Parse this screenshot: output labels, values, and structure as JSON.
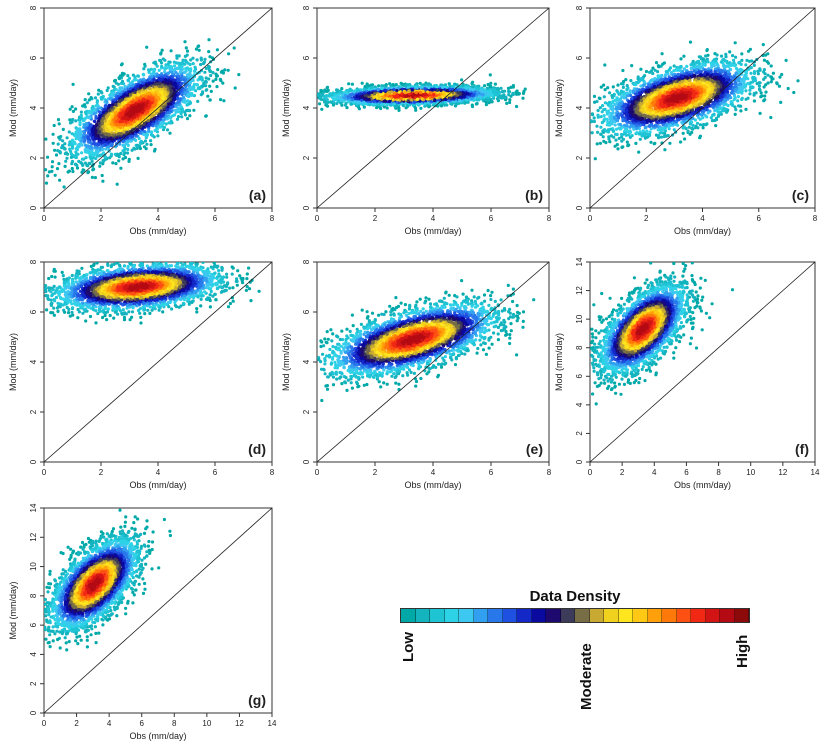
{
  "chart_data": [
    {
      "type": "scatter",
      "panel_label": "(a)",
      "xlabel": "Obs (mm/day)",
      "ylabel": "Mod (mm/day)",
      "xlim": [
        0,
        8
      ],
      "ylim": [
        0,
        8
      ],
      "xticks": [
        0,
        2,
        4,
        6,
        8
      ],
      "yticks": [
        0,
        2,
        4,
        6,
        8
      ],
      "reference_line": "1:1",
      "density_center": [
        3.2,
        3.9
      ],
      "spread": [
        1.1,
        0.9
      ],
      "correlation": 0.7
    },
    {
      "type": "scatter",
      "panel_label": "(b)",
      "xlabel": "Obs (mm/day)",
      "ylabel": "Mod (mm/day)",
      "xlim": [
        0,
        8
      ],
      "ylim": [
        0,
        8
      ],
      "xticks": [
        0,
        2,
        4,
        6,
        8
      ],
      "yticks": [
        0,
        2,
        4,
        6,
        8
      ],
      "reference_line": "1:1",
      "density_center": [
        3.3,
        4.5
      ],
      "spread": [
        1.4,
        0.18
      ],
      "correlation": 0.2
    },
    {
      "type": "scatter",
      "panel_label": "(c)",
      "xlabel": "Obs (mm/day)",
      "ylabel": "Mod (mm/day)",
      "xlim": [
        0,
        8
      ],
      "ylim": [
        0,
        8
      ],
      "xticks": [
        0,
        2,
        4,
        6,
        8
      ],
      "yticks": [
        0,
        2,
        4,
        6,
        8
      ],
      "reference_line": "1:1",
      "density_center": [
        3.1,
        4.4
      ],
      "spread": [
        1.3,
        0.7
      ],
      "correlation": 0.55
    },
    {
      "type": "scatter",
      "panel_label": "(d)",
      "xlabel": "Obs (mm/day)",
      "ylabel": "Mod (mm/day)",
      "xlim": [
        0,
        8
      ],
      "ylim": [
        0,
        8
      ],
      "xticks": [
        0,
        2,
        4,
        6,
        8
      ],
      "yticks": [
        0,
        2,
        4,
        6,
        8
      ],
      "reference_line": "1:1",
      "density_center": [
        3.3,
        7.0
      ],
      "spread": [
        1.4,
        0.45
      ],
      "correlation": 0.3
    },
    {
      "type": "scatter",
      "panel_label": "(e)",
      "xlabel": "Obs (mm/day)",
      "ylabel": "Mod (mm/day)",
      "xlim": [
        0,
        8
      ],
      "ylim": [
        0,
        8
      ],
      "xticks": [
        0,
        2,
        4,
        6,
        8
      ],
      "yticks": [
        0,
        2,
        4,
        6,
        8
      ],
      "reference_line": "1:1",
      "density_center": [
        3.3,
        4.9
      ],
      "spread": [
        1.4,
        0.7
      ],
      "correlation": 0.6
    },
    {
      "type": "scatter",
      "panel_label": "(f)",
      "xlabel": "Obs (mm/day)",
      "ylabel": "Mod (mm/day)",
      "xlim": [
        0,
        14
      ],
      "ylim": [
        0,
        14
      ],
      "xticks": [
        0,
        2,
        4,
        6,
        8,
        10,
        12,
        14
      ],
      "yticks": [
        0,
        2,
        4,
        6,
        8,
        10,
        12,
        14
      ],
      "reference_line": "1:1",
      "density_center": [
        3.3,
        9.3
      ],
      "spread": [
        1.3,
        1.5
      ],
      "correlation": 0.6
    },
    {
      "type": "scatter",
      "panel_label": "(g)",
      "xlabel": "Obs (mm/day)",
      "ylabel": "Mod (mm/day)",
      "xlim": [
        0,
        14
      ],
      "ylim": [
        0,
        14
      ],
      "xticks": [
        0,
        2,
        4,
        6,
        8,
        10,
        12,
        14
      ],
      "yticks": [
        0,
        2,
        4,
        6,
        8,
        10,
        12,
        14
      ],
      "reference_line": "1:1",
      "density_center": [
        3.1,
        8.8
      ],
      "spread": [
        1.3,
        1.5
      ],
      "correlation": 0.6
    }
  ],
  "legend": {
    "title": "Data Density",
    "low_label": "Low",
    "moderate_label": "Moderate",
    "high_label": "High",
    "colors": [
      "#00a8a8",
      "#14b4bf",
      "#1ec3d4",
      "#2dd2e6",
      "#3cc8f0",
      "#32a0f0",
      "#2878eb",
      "#1e50e1",
      "#1428c8",
      "#0a0aa0",
      "#1e0a6e",
      "#3c3c5a",
      "#786e46",
      "#c8aa32",
      "#f0d21e",
      "#ffe61e",
      "#ffc814",
      "#ffa00a",
      "#ff780a",
      "#ff5014",
      "#f02814",
      "#d21414",
      "#b40a14",
      "#8c0a0a"
    ]
  }
}
